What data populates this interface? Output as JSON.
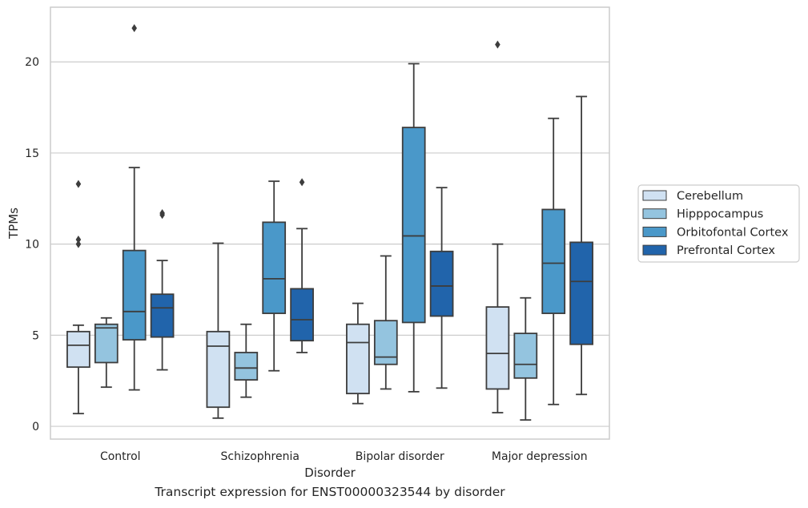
{
  "caption": "Transcript expression for ENST00000323544 by disorder",
  "chart_data": {
    "type": "box",
    "xlabel": "Disorder",
    "ylabel": "TPMs",
    "ylim": [
      -0.7,
      23.0
    ],
    "yticks": [
      0,
      5,
      10,
      15,
      20
    ],
    "grid": true,
    "legend_position": "right",
    "categories": [
      "Control",
      "Schizophrenia",
      "Bipolar disorder",
      "Major depression"
    ],
    "series": [
      {
        "name": "Cerebellum",
        "color": "#d0e1f2",
        "boxes": [
          {
            "whislo": 0.7,
            "q1": 3.25,
            "med": 4.45,
            "q3": 5.2,
            "whishi": 5.55,
            "fliers": [
              10.0,
              10.25,
              13.3
            ]
          },
          {
            "whislo": 0.45,
            "q1": 1.05,
            "med": 4.4,
            "q3": 5.2,
            "whishi": 10.05,
            "fliers": []
          },
          {
            "whislo": 1.25,
            "q1": 1.8,
            "med": 4.6,
            "q3": 5.6,
            "whishi": 6.75,
            "fliers": []
          },
          {
            "whislo": 0.75,
            "q1": 2.05,
            "med": 4.0,
            "q3": 6.55,
            "whishi": 10.0,
            "fliers": [
              20.95
            ]
          }
        ]
      },
      {
        "name": "Hipppocampus",
        "color": "#94c4df",
        "boxes": [
          {
            "whislo": 2.15,
            "q1": 3.5,
            "med": 5.4,
            "q3": 5.6,
            "whishi": 5.95,
            "fliers": []
          },
          {
            "whislo": 1.6,
            "q1": 2.55,
            "med": 3.2,
            "q3": 4.05,
            "whishi": 5.6,
            "fliers": []
          },
          {
            "whislo": 2.05,
            "q1": 3.4,
            "med": 3.8,
            "q3": 5.8,
            "whishi": 9.35,
            "fliers": []
          },
          {
            "whislo": 0.35,
            "q1": 2.65,
            "med": 3.4,
            "q3": 5.1,
            "whishi": 7.05,
            "fliers": []
          }
        ]
      },
      {
        "name": "Orbitofontal Cortex",
        "color": "#4a98c9",
        "boxes": [
          {
            "whislo": 2.0,
            "q1": 4.75,
            "med": 6.3,
            "q3": 9.65,
            "whishi": 14.2,
            "fliers": [
              21.85
            ]
          },
          {
            "whislo": 3.05,
            "q1": 6.2,
            "med": 8.1,
            "q3": 11.2,
            "whishi": 13.45,
            "fliers": []
          },
          {
            "whislo": 1.9,
            "q1": 5.7,
            "med": 10.45,
            "q3": 16.4,
            "whishi": 19.9,
            "fliers": []
          },
          {
            "whislo": 1.2,
            "q1": 6.2,
            "med": 8.95,
            "q3": 11.9,
            "whishi": 16.9,
            "fliers": []
          }
        ]
      },
      {
        "name": "Prefrontal Cortex",
        "color": "#2164ab",
        "boxes": [
          {
            "whislo": 3.1,
            "q1": 4.9,
            "med": 6.5,
            "q3": 7.25,
            "whishi": 9.1,
            "fliers": [
              11.6,
              11.7
            ]
          },
          {
            "whislo": 4.05,
            "q1": 4.7,
            "med": 5.85,
            "q3": 7.55,
            "whishi": 10.85,
            "fliers": [
              13.4
            ]
          },
          {
            "whislo": 2.1,
            "q1": 6.05,
            "med": 7.7,
            "q3": 9.6,
            "whishi": 13.1,
            "fliers": []
          },
          {
            "whislo": 1.75,
            "q1": 4.5,
            "med": 7.95,
            "q3": 10.1,
            "whishi": 18.1,
            "fliers": []
          }
        ]
      }
    ]
  }
}
